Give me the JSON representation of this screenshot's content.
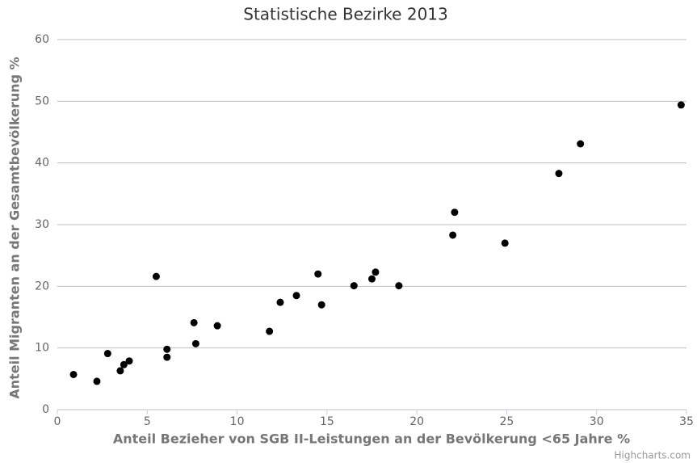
{
  "chart_data": {
    "type": "scatter",
    "title": "Statistische Bezirke 2013",
    "x_label": "Anteil Bezieher von SGB II-Leistungen an der Bevölkerung <65 Jahre %",
    "y_label": "Anteil Migranten an der Gesamtbevölkerung %",
    "credits": "Highcharts.com",
    "series": [
      {
        "color": "#000000",
        "x": [
          0.9,
          2.2,
          2.8,
          3.5,
          3.7,
          4.0,
          5.5,
          6.1,
          6.1,
          7.6,
          7.7,
          8.9,
          11.8,
          12.4,
          13.3,
          14.5,
          14.7,
          16.5,
          17.5,
          17.7,
          19.0,
          22.0,
          22.1,
          24.9,
          27.9,
          29.1,
          34.7
        ],
        "values": [
          5.7,
          4.6,
          9.1,
          6.3,
          7.3,
          7.9,
          21.6,
          9.8,
          8.5,
          14.1,
          10.7,
          13.6,
          12.7,
          17.4,
          18.5,
          22.0,
          17.0,
          20.1,
          21.2,
          22.3,
          20.1,
          28.3,
          32.0,
          27.0,
          38.3,
          43.1,
          49.4
        ]
      }
    ],
    "xlim": [
      0,
      35
    ],
    "xticks": [
      0,
      5,
      10,
      15,
      20,
      25,
      30,
      35
    ],
    "ylim": [
      0,
      60
    ],
    "yticks": [
      0,
      10,
      20,
      30,
      40,
      50,
      60
    ],
    "grid": true
  }
}
